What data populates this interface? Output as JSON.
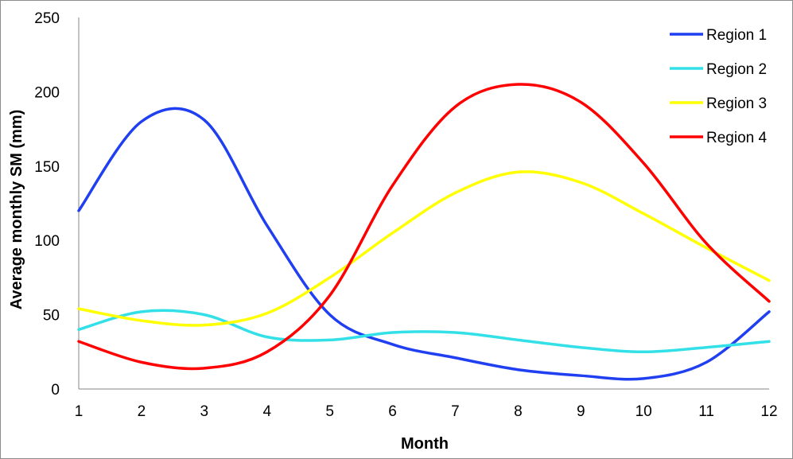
{
  "chart_data": {
    "type": "line",
    "title": "",
    "xlabel": "Month",
    "ylabel": "Average monthly SM (mm)",
    "x": [
      1,
      2,
      3,
      4,
      5,
      6,
      7,
      8,
      9,
      10,
      11,
      12
    ],
    "xticks": [
      "1",
      "2",
      "3",
      "4",
      "5",
      "6",
      "7",
      "8",
      "9",
      "10",
      "11",
      "12"
    ],
    "yticks": [
      "0",
      "50",
      "100",
      "150",
      "200",
      "250"
    ],
    "ylim": [
      0,
      250
    ],
    "xlim": [
      1,
      12
    ],
    "grid": false,
    "legend_position": "top-right",
    "smooth": true,
    "series": [
      {
        "name": "Region 1",
        "color": "#1f3ff0",
        "values": [
          120,
          180,
          181,
          110,
          50,
          30,
          21,
          13,
          9,
          7,
          18,
          52
        ]
      },
      {
        "name": "Region 2",
        "color": "#33e0e8",
        "values": [
          40,
          52,
          50,
          35,
          33,
          38,
          38,
          33,
          28,
          25,
          28,
          32
        ]
      },
      {
        "name": "Region 3",
        "color": "#ffff00",
        "values": [
          54,
          46,
          43,
          51,
          75,
          105,
          132,
          146,
          139,
          118,
          95,
          73
        ]
      },
      {
        "name": "Region 4",
        "color": "#ff0000",
        "values": [
          32,
          18,
          14,
          25,
          63,
          137,
          190,
          205,
          193,
          152,
          98,
          59
        ]
      }
    ]
  }
}
